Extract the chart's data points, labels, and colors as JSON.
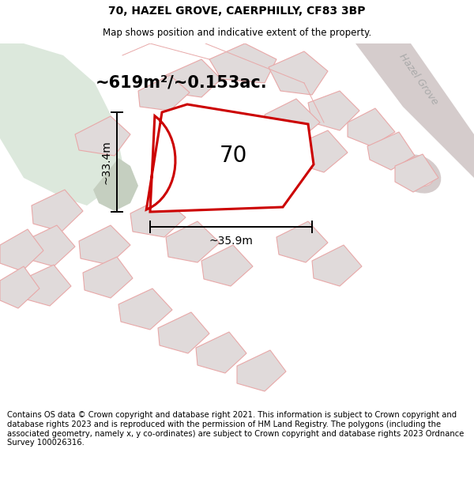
{
  "title": "70, HAZEL GROVE, CAERPHILLY, CF83 3BP",
  "subtitle": "Map shows position and indicative extent of the property.",
  "area_text": "~619m²/~0.153ac.",
  "dim_width": "~35.9m",
  "dim_height": "~33.4m",
  "property_number": "70",
  "street_label": "Hazel Grove",
  "footer": "Contains OS data © Crown copyright and database right 2021. This information is subject to Crown copyright and database rights 2023 and is reproduced with the permission of HM Land Registry. The polygons (including the associated geometry, namely x, y co-ordinates) are subject to Crown copyright and database rights 2023 Ordnance Survey 100026316.",
  "bg_map": "#f2eeee",
  "building_fill": "#e0dada",
  "building_edge": "#e8a8a8",
  "green_fill": "#dce8dc",
  "green_edge": "none",
  "grey_fill": "#c8d2c0",
  "road_fill": "#d8d0d0",
  "road_label_color": "#aaaaaa",
  "property_fill": "#ffffff",
  "property_edge": "#cc0000",
  "title_fontsize": 10,
  "subtitle_fontsize": 8.5,
  "area_fontsize": 15,
  "number_fontsize": 20,
  "dim_fontsize": 10,
  "footer_fontsize": 7.2,
  "street_fontsize": 9
}
